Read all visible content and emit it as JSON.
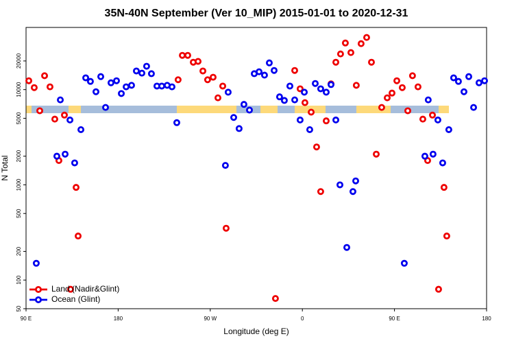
{
  "chart_data": {
    "type": "scatter",
    "title": "35N-40N September (Ver 10_MIP)   2015-01-01 to 2020-12-31",
    "xlabel": "Longitude (deg E)",
    "ylabel": "N Total",
    "xlim": [
      90,
      540
    ],
    "xticks": [
      {
        "value": 90,
        "label": "90 E"
      },
      {
        "value": 180,
        "label": "180"
      },
      {
        "value": 270,
        "label": "90 W"
      },
      {
        "value": 360,
        "label": "0"
      },
      {
        "value": 450,
        "label": "90 E"
      },
      {
        "value": 540,
        "label": "180"
      }
    ],
    "ylim": [
      50,
      45000
    ],
    "yticks": [
      50,
      100,
      200,
      500,
      1000,
      2000,
      5000,
      10000,
      20000
    ],
    "ylog": true,
    "legend": "lower left",
    "series": [
      {
        "name": "Land (Nadir&Glint)",
        "color": "#ee0000",
        "x": [
          92.7,
          98,
          103.4,
          108.1,
          113.4,
          118.1,
          122.1,
          127.5,
          133.5,
          138.9,
          140.9,
          238.6,
          242.7,
          248,
          253.4,
          258.1,
          262.8,
          267.4,
          272.8,
          277.5,
          282.2,
          285.5,
          333.7,
          352.5,
          357.8,
          362.5,
          368.6,
          373.9,
          377.9,
          383.3,
          388,
          392.7,
          397.3,
          402,
          407.4,
          412.7,
          417.4,
          422.8,
          427.5,
          432.2,
          437.5,
          442.9,
          447.6,
          452.3,
          457.6,
          463,
          467.6,
          473,
          477.7,
          482.4,
          487.1,
          493.1,
          498.4,
          501.1
        ],
        "values": [
          12400,
          10500,
          6000,
          14000,
          10700,
          4900,
          1800,
          5400,
          80,
          940,
          290,
          12700,
          22900,
          22900,
          19400,
          19800,
          15700,
          12700,
          13500,
          8200,
          10900,
          350,
          64,
          15900,
          10200,
          7300,
          5800,
          2500,
          850,
          4700,
          11500,
          19400,
          23700,
          30900,
          24500,
          11100,
          30400,
          35300,
          19400,
          2100,
          6500,
          8200,
          9200,
          12400,
          10500,
          6000,
          14000,
          10700,
          4900,
          1800,
          5400,
          80,
          940,
          290
        ]
      },
      {
        "name": "Ocean (Glint)",
        "color": "#0000ee",
        "x": [
          100,
          120.1,
          123.5,
          128.2,
          132.9,
          137.5,
          143.6,
          148.3,
          152.9,
          158.3,
          163,
          167.7,
          173,
          178.4,
          183.1,
          187.8,
          193.1,
          197.8,
          203.2,
          207.8,
          212.5,
          217.9,
          222.6,
          227.9,
          232.6,
          237.3,
          284.8,
          287.5,
          292.9,
          298.2,
          302.9,
          308.3,
          313,
          317.7,
          323,
          327.7,
          332.4,
          337.7,
          342.4,
          347.8,
          352.5,
          357.8,
          361.9,
          367.2,
          372.6,
          377.9,
          383.3,
          388,
          392.7,
          396.7,
          403.4,
          409.4,
          412.1,
          459.6,
          479.7,
          483,
          487.7,
          492.4,
          497.1,
          503.1,
          507.8,
          512.5,
          517.9,
          522.6,
          527.3,
          532.6,
          538
        ],
        "values": [
          150,
          2000,
          7800,
          2100,
          4800,
          1700,
          3800,
          13300,
          12200,
          9500,
          13700,
          6500,
          11800,
          12400,
          9100,
          10700,
          11100,
          15700,
          14900,
          17600,
          14700,
          10900,
          10900,
          11100,
          10700,
          4500,
          1600,
          9400,
          5100,
          3900,
          7000,
          6100,
          14700,
          15400,
          14200,
          19100,
          15900,
          8400,
          7700,
          10900,
          7800,
          4800,
          9400,
          3800,
          11600,
          10200,
          9400,
          11300,
          4800,
          1000,
          220,
          850,
          1100,
          150,
          2000,
          7800,
          2100,
          4800,
          1700,
          3800,
          13300,
          12200,
          9500,
          13700,
          6500,
          11800,
          12400
        ]
      }
    ]
  }
}
